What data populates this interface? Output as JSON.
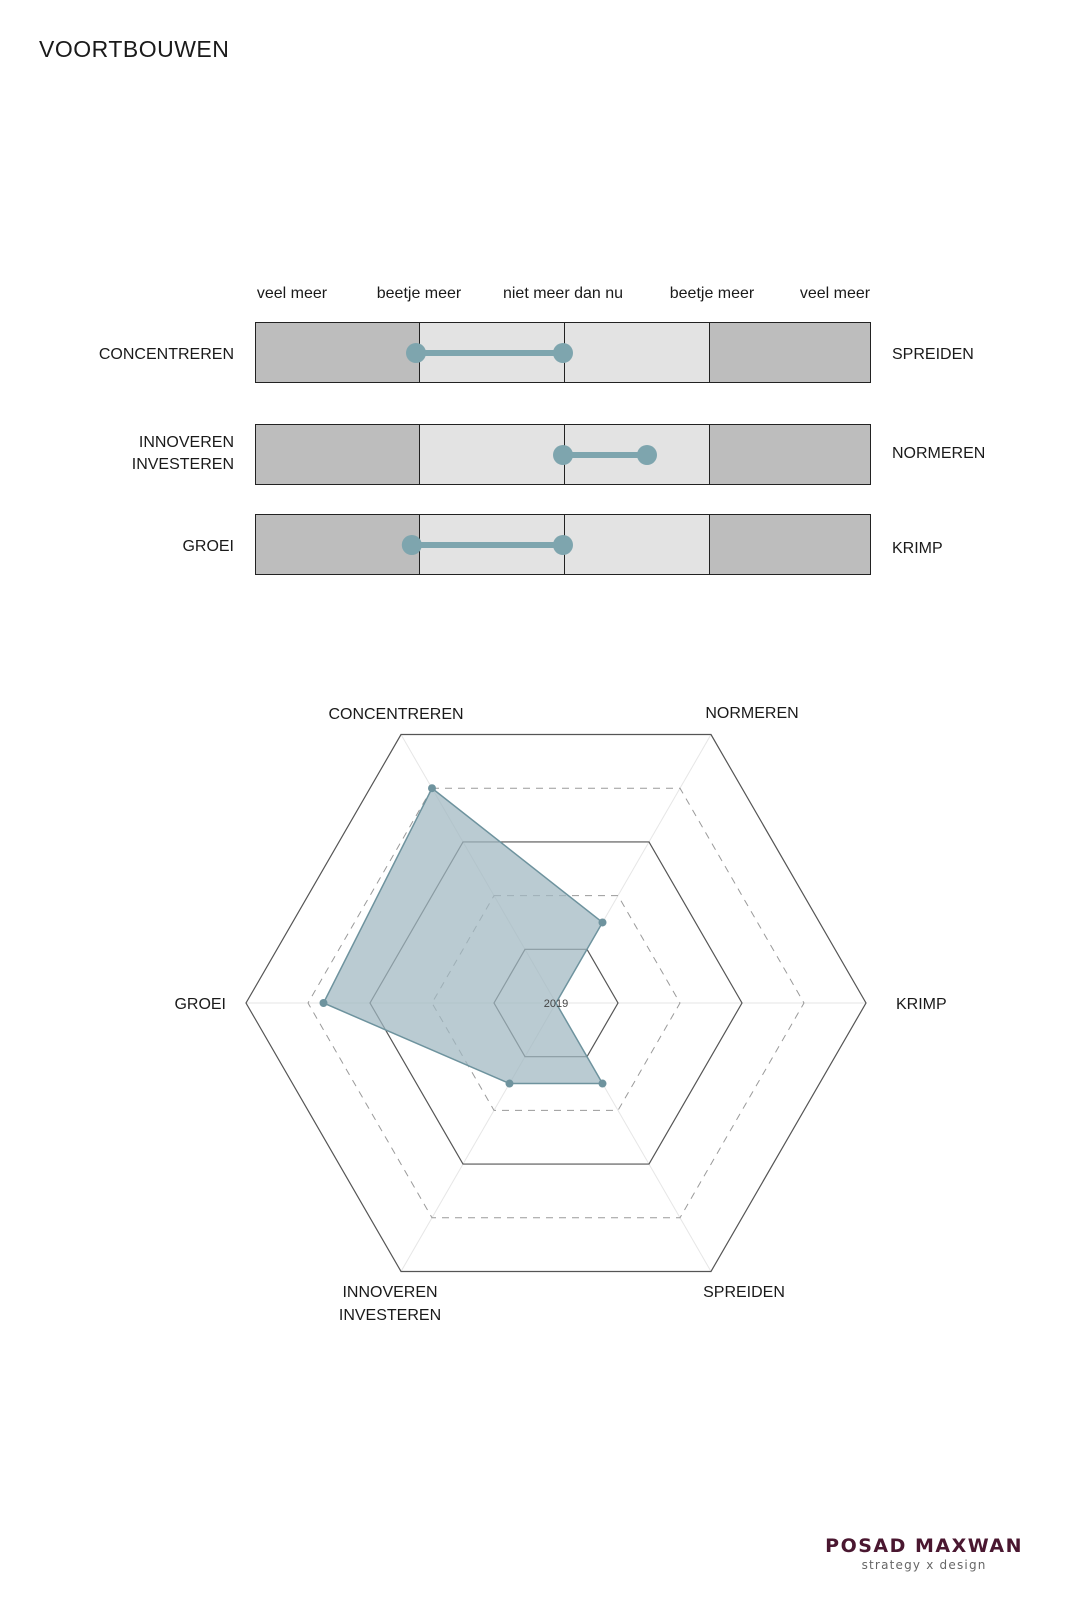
{
  "page": {
    "title": "VOORTBOUWEN"
  },
  "scale": [
    "veel meer",
    "beetje meer",
    "niet meer dan nu",
    "beetje meer",
    "veel meer"
  ],
  "sliders": [
    {
      "left_label": [
        "CONCENTREREN"
      ],
      "right_label": [
        "SPREIDEN"
      ],
      "range": [
        -1.75,
        0
      ]
    },
    {
      "left_label": [
        "INNOVEREN",
        "INVESTEREN"
      ],
      "right_label": [
        "NORMEREN"
      ],
      "range": [
        0,
        1.0
      ]
    },
    {
      "left_label": [
        "GROEI"
      ],
      "right_label": [
        "KRIMP"
      ],
      "range": [
        -1.8,
        0
      ]
    }
  ],
  "chart_data": {
    "type": "radar",
    "axes": [
      "CONCENTREREN",
      "NORMEREN",
      "KRIMP",
      "SPREIDEN",
      "INNOVEREN INVESTEREN",
      "GROEI"
    ],
    "axis_label_lines": [
      [
        "CONCENTREREN"
      ],
      [
        "NORMEREN"
      ],
      [
        "KRIMP"
      ],
      [
        "SPREIDEN"
      ],
      [
        "INNOVEREN",
        "INVESTEREN"
      ],
      [
        "GROEI"
      ]
    ],
    "rings": [
      1,
      2,
      3,
      4,
      5
    ],
    "dashed_rings": [
      2,
      4
    ],
    "max": 5,
    "center_label": "2019",
    "series": [
      {
        "values": [
          4,
          1.5,
          0,
          1.5,
          1.5,
          3.75
        ]
      }
    ],
    "colors": {
      "fill": "#9fb7c0",
      "stroke": "#6e939e",
      "ring": "#555555"
    }
  },
  "logo": {
    "name": "POSAD MAXWAN",
    "tagline": "strategy x design"
  },
  "colors": {
    "accent": "#7ea5ae",
    "dark_segment": "#bdbdbd",
    "light_segment": "#e3e3e3"
  }
}
